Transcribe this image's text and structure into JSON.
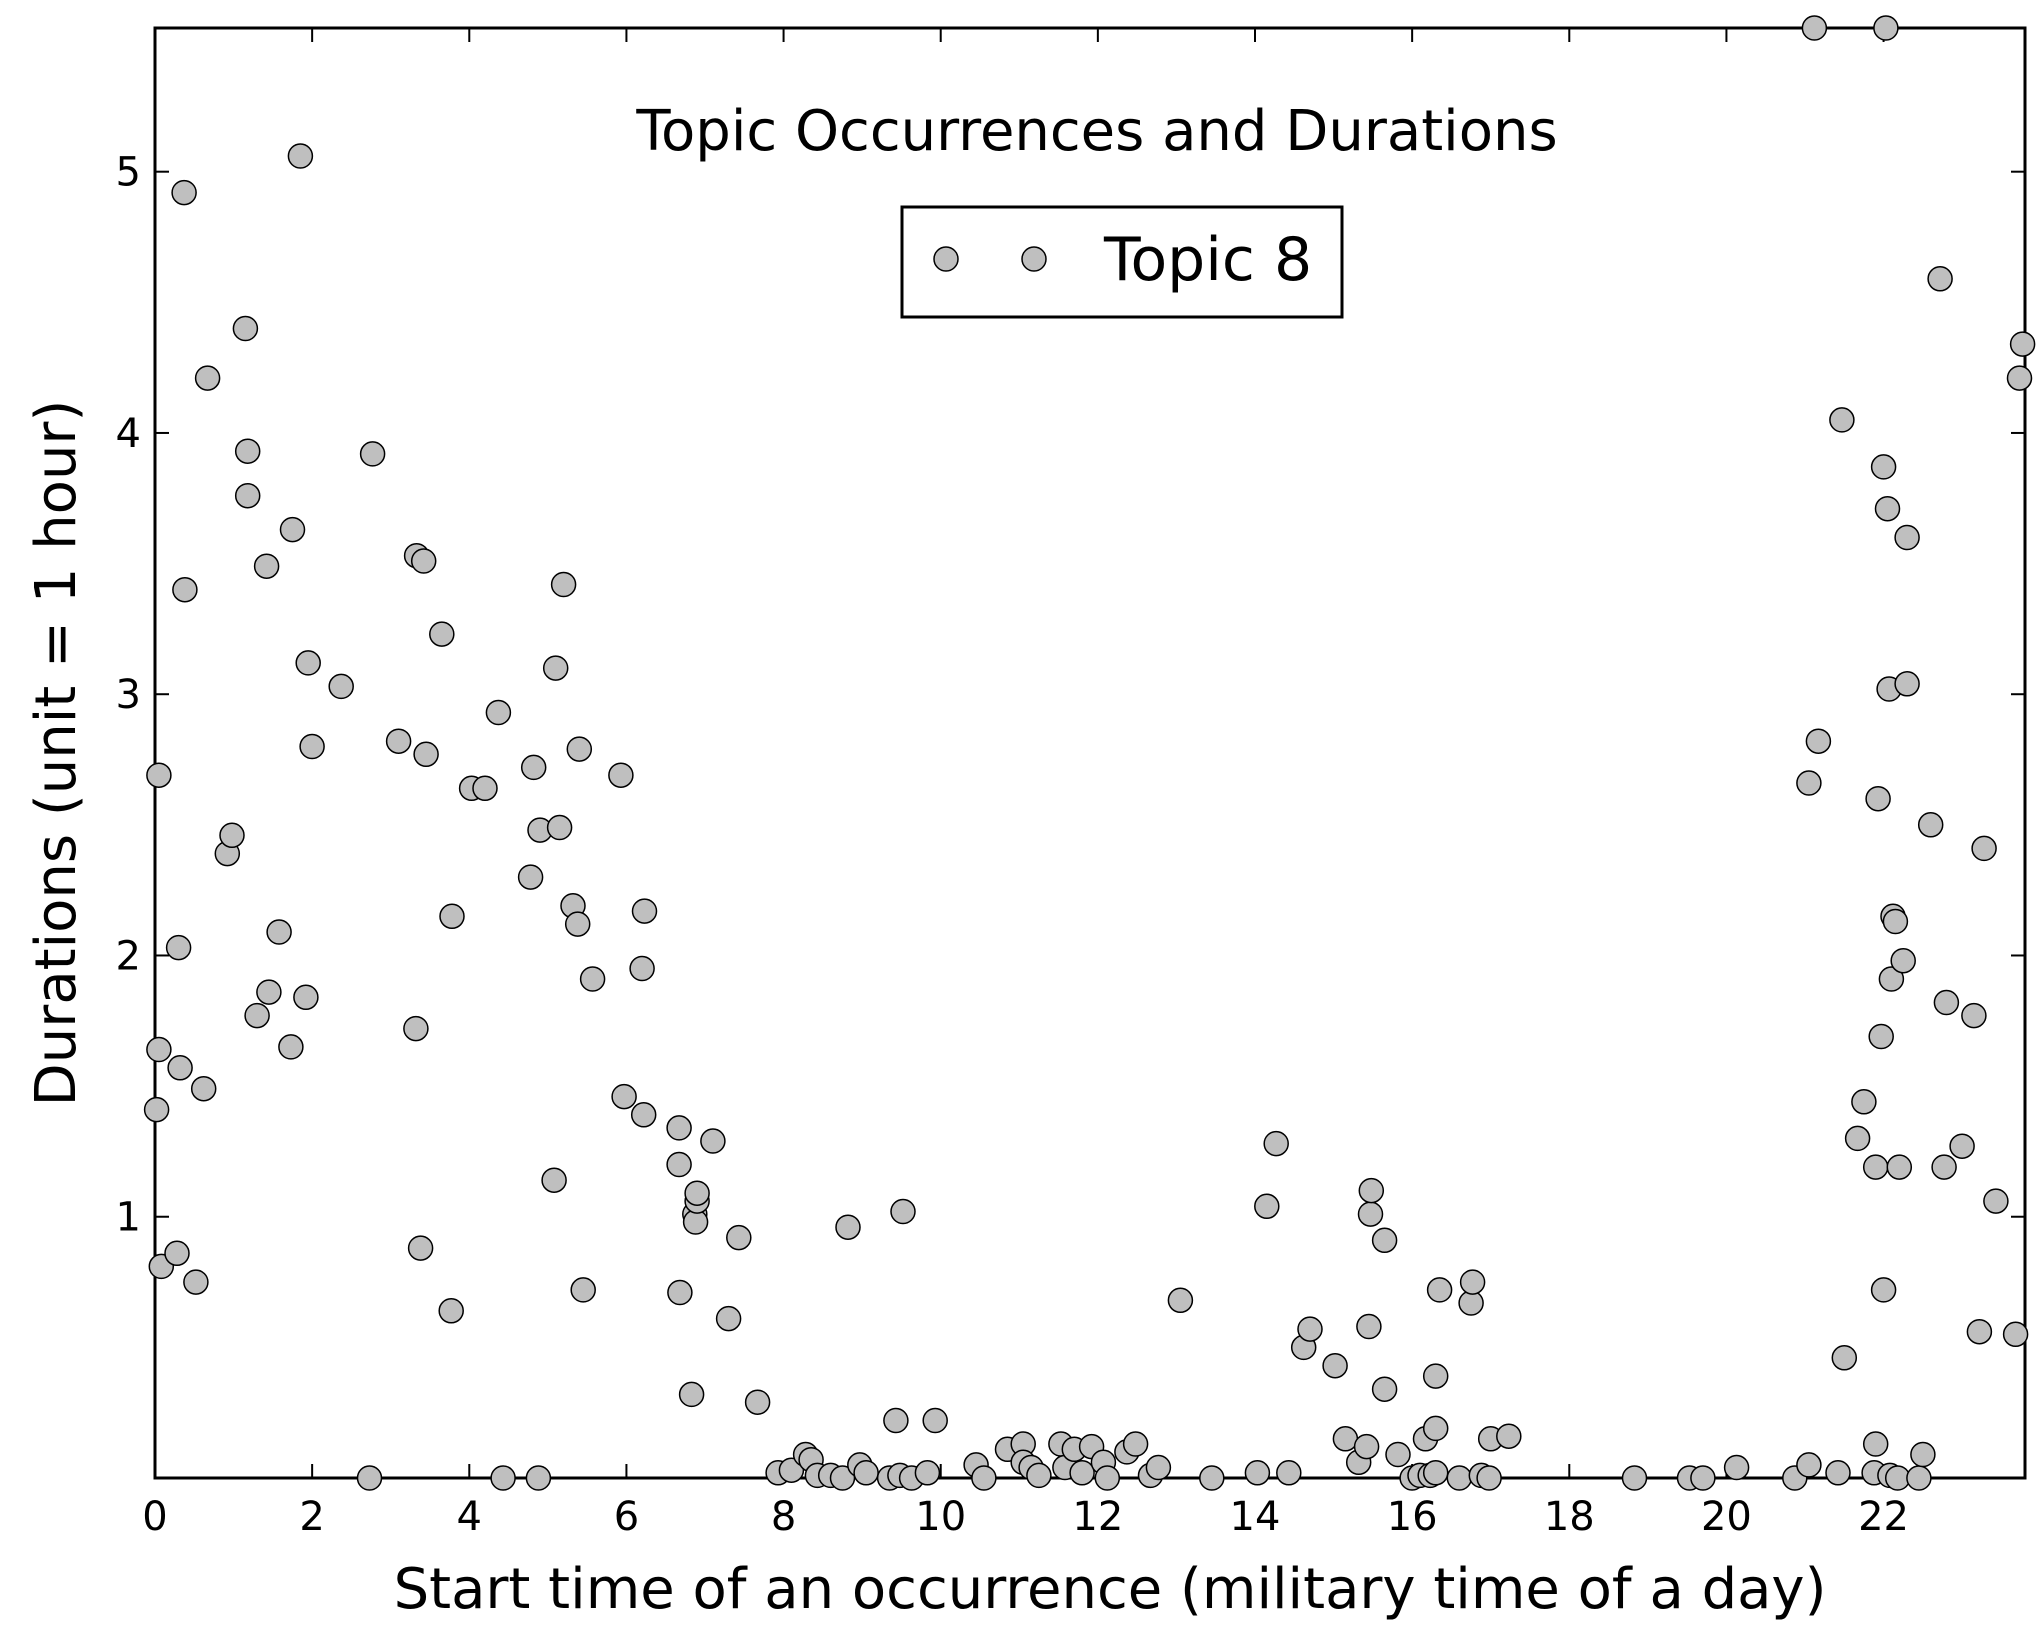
{
  "chart_data": {
    "type": "scatter",
    "title": "Topic Occurrences and Durations",
    "xlabel": "Start time of an occurrence (military time of a day)",
    "ylabel": "Durations (unit = 1 hour)",
    "xlim": [
      0,
      23.8
    ],
    "ylim": [
      0,
      5.55
    ],
    "xticks": [
      "0",
      "2",
      "4",
      "6",
      "8",
      "10",
      "12",
      "14",
      "16",
      "18",
      "20",
      "22"
    ],
    "yticks": [
      "1",
      "2",
      "3",
      "4",
      "5"
    ],
    "grid": false,
    "legend_position": "top-center",
    "marker_color": "#bfbfbf",
    "marker_edge_color": "#000000",
    "series": [
      {
        "name": "Topic 8",
        "points": [
          [
            0.02,
            1.41
          ],
          [
            0.05,
            2.69
          ],
          [
            0.05,
            1.64
          ],
          [
            0.08,
            0.81
          ],
          [
            0.28,
            0.86
          ],
          [
            0.3,
            2.03
          ],
          [
            0.32,
            1.57
          ],
          [
            0.37,
            4.92
          ],
          [
            0.38,
            3.4
          ],
          [
            0.52,
            0.75
          ],
          [
            0.62,
            1.49
          ],
          [
            0.67,
            4.21
          ],
          [
            0.92,
            2.39
          ],
          [
            0.98,
            2.46
          ],
          [
            1.15,
            4.4
          ],
          [
            1.18,
            3.93
          ],
          [
            1.18,
            3.76
          ],
          [
            1.3,
            1.77
          ],
          [
            1.42,
            3.49
          ],
          [
            1.45,
            1.86
          ],
          [
            1.58,
            2.09
          ],
          [
            1.73,
            1.65
          ],
          [
            1.75,
            3.63
          ],
          [
            1.85,
            5.06
          ],
          [
            1.92,
            1.84
          ],
          [
            1.95,
            3.12
          ],
          [
            2.0,
            2.8
          ],
          [
            2.37,
            3.03
          ],
          [
            2.73,
            0.0
          ],
          [
            2.77,
            3.92
          ],
          [
            3.1,
            2.82
          ],
          [
            3.32,
            1.72
          ],
          [
            3.33,
            3.53
          ],
          [
            3.38,
            0.88
          ],
          [
            3.42,
            3.51
          ],
          [
            3.45,
            2.77
          ],
          [
            3.65,
            3.23
          ],
          [
            3.77,
            0.64
          ],
          [
            3.78,
            2.15
          ],
          [
            4.03,
            2.64
          ],
          [
            4.2,
            2.64
          ],
          [
            4.37,
            2.93
          ],
          [
            4.43,
            0.0
          ],
          [
            4.78,
            2.3
          ],
          [
            4.82,
            2.72
          ],
          [
            4.88,
            0.0
          ],
          [
            4.9,
            2.48
          ],
          [
            5.08,
            1.14
          ],
          [
            5.1,
            3.1
          ],
          [
            5.15,
            2.49
          ],
          [
            5.2,
            3.42
          ],
          [
            5.32,
            2.19
          ],
          [
            5.38,
            2.12
          ],
          [
            5.4,
            2.79
          ],
          [
            5.45,
            0.72
          ],
          [
            5.57,
            1.91
          ],
          [
            5.93,
            2.69
          ],
          [
            5.97,
            1.46
          ],
          [
            6.2,
            1.95
          ],
          [
            6.22,
            1.39
          ],
          [
            6.23,
            2.17
          ],
          [
            6.67,
            1.34
          ],
          [
            6.67,
            1.2
          ],
          [
            6.68,
            0.71
          ],
          [
            6.83,
            0.32
          ],
          [
            6.87,
            1.01
          ],
          [
            6.88,
            0.98
          ],
          [
            6.9,
            1.06
          ],
          [
            6.9,
            1.09
          ],
          [
            7.1,
            1.29
          ],
          [
            7.3,
            0.61
          ],
          [
            7.43,
            0.92
          ],
          [
            7.67,
            0.29
          ],
          [
            7.93,
            0.02
          ],
          [
            8.1,
            0.03
          ],
          [
            8.28,
            0.09
          ],
          [
            8.35,
            0.07
          ],
          [
            8.43,
            0.01
          ],
          [
            8.6,
            0.01
          ],
          [
            8.75,
            0.0
          ],
          [
            8.82,
            0.96
          ],
          [
            8.97,
            0.05
          ],
          [
            9.05,
            0.02
          ],
          [
            9.35,
            0.0
          ],
          [
            9.43,
            0.22
          ],
          [
            9.48,
            0.01
          ],
          [
            9.52,
            1.02
          ],
          [
            9.63,
            0.0
          ],
          [
            9.83,
            0.02
          ],
          [
            9.93,
            0.22
          ],
          [
            10.45,
            0.05
          ],
          [
            10.55,
            0.0
          ],
          [
            10.85,
            0.11
          ],
          [
            11.05,
            0.13
          ],
          [
            11.05,
            0.06
          ],
          [
            11.15,
            0.04
          ],
          [
            11.25,
            0.01
          ],
          [
            11.53,
            0.13
          ],
          [
            11.58,
            0.04
          ],
          [
            11.7,
            0.11
          ],
          [
            11.8,
            0.02
          ],
          [
            11.92,
            0.12
          ],
          [
            12.07,
            0.06
          ],
          [
            12.12,
            0.0
          ],
          [
            12.37,
            0.1
          ],
          [
            12.48,
            0.13
          ],
          [
            12.67,
            0.01
          ],
          [
            12.77,
            0.04
          ],
          [
            13.05,
            0.68
          ],
          [
            13.45,
            0.0
          ],
          [
            14.03,
            0.02
          ],
          [
            14.15,
            1.04
          ],
          [
            14.27,
            1.28
          ],
          [
            14.43,
            0.02
          ],
          [
            14.62,
            0.5
          ],
          [
            14.7,
            0.57
          ],
          [
            15.02,
            0.43
          ],
          [
            15.15,
            0.15
          ],
          [
            15.32,
            0.06
          ],
          [
            15.42,
            0.12
          ],
          [
            15.45,
            0.58
          ],
          [
            15.47,
            1.01
          ],
          [
            15.48,
            1.1
          ],
          [
            15.65,
            0.34
          ],
          [
            15.65,
            0.91
          ],
          [
            15.82,
            0.09
          ],
          [
            16.0,
            0.0
          ],
          [
            16.1,
            0.01
          ],
          [
            16.17,
            0.15
          ],
          [
            16.23,
            0.01
          ],
          [
            16.3,
            0.39
          ],
          [
            16.3,
            0.02
          ],
          [
            16.3,
            0.19
          ],
          [
            16.35,
            0.72
          ],
          [
            16.6,
            0.0
          ],
          [
            16.75,
            0.67
          ],
          [
            16.77,
            0.75
          ],
          [
            16.88,
            0.01
          ],
          [
            16.98,
            0.0
          ],
          [
            17.0,
            0.15
          ],
          [
            17.23,
            0.16
          ],
          [
            18.83,
            0.0
          ],
          [
            19.53,
            0.0
          ],
          [
            19.7,
            0.0
          ],
          [
            20.13,
            0.04
          ],
          [
            20.87,
            0.0
          ],
          [
            21.05,
            0.05
          ],
          [
            21.05,
            2.66
          ],
          [
            21.12,
            5.55
          ],
          [
            21.17,
            2.82
          ],
          [
            21.42,
            0.02
          ],
          [
            21.47,
            4.05
          ],
          [
            21.5,
            0.46
          ],
          [
            21.67,
            1.3
          ],
          [
            21.75,
            1.44
          ],
          [
            21.88,
            0.02
          ],
          [
            21.9,
            1.19
          ],
          [
            21.9,
            0.13
          ],
          [
            21.93,
            2.6
          ],
          [
            21.97,
            1.69
          ],
          [
            22.0,
            0.72
          ],
          [
            22.0,
            3.87
          ],
          [
            22.03,
            5.55
          ],
          [
            22.05,
            3.71
          ],
          [
            22.07,
            3.02
          ],
          [
            22.08,
            0.01
          ],
          [
            22.1,
            1.91
          ],
          [
            22.12,
            2.15
          ],
          [
            22.15,
            2.13
          ],
          [
            22.18,
            0.0
          ],
          [
            22.2,
            1.19
          ],
          [
            22.25,
            1.98
          ],
          [
            22.3,
            3.04
          ],
          [
            22.3,
            3.6
          ],
          [
            22.45,
            0.0
          ],
          [
            22.5,
            0.09
          ],
          [
            22.6,
            2.5
          ],
          [
            22.72,
            4.59
          ],
          [
            22.77,
            1.19
          ],
          [
            22.8,
            1.82
          ],
          [
            23.0,
            1.27
          ],
          [
            23.15,
            1.77
          ],
          [
            23.22,
            0.56
          ],
          [
            23.28,
            2.41
          ],
          [
            23.43,
            1.06
          ],
          [
            23.68,
            0.55
          ],
          [
            23.73,
            4.21
          ],
          [
            23.77,
            4.34
          ]
        ]
      }
    ]
  }
}
